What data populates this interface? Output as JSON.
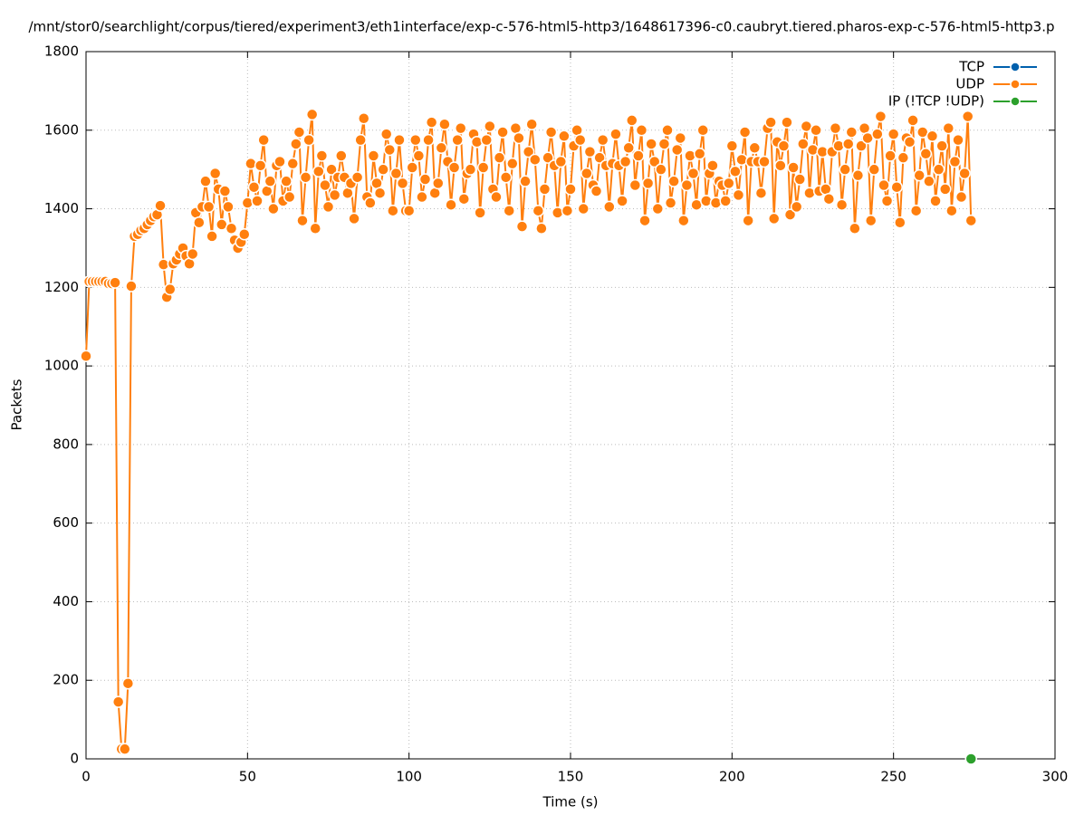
{
  "chart_data": {
    "type": "line",
    "title": "/mnt/stor0/searchlight/corpus/tiered/experiment3/eth1interface/exp-c-576-html5-http3/1648617396-c0.caubryt.tiered.pharos-exp-c-576-html5-http3.p",
    "x_label": "Time (s)",
    "y_label": "Packets",
    "xlim": [
      0,
      300
    ],
    "xticks": [
      0,
      50,
      100,
      150,
      200,
      250,
      300
    ],
    "ylim": [
      0,
      1800
    ],
    "yticks": [
      0,
      200,
      400,
      600,
      800,
      1000,
      1200,
      1400,
      1600,
      1800
    ],
    "grid": true,
    "legend": "top-right",
    "series": [
      {
        "name": "TCP",
        "color": "#0060ad",
        "x": [],
        "values": []
      },
      {
        "name": "UDP",
        "color": "#ff7f0e",
        "x": [
          0,
          1,
          2,
          3,
          4,
          5,
          6,
          7,
          8,
          9,
          10,
          11,
          12,
          13,
          14,
          15,
          16,
          17,
          18,
          19,
          20,
          21,
          22,
          23,
          24,
          25,
          26,
          27,
          28,
          29,
          30,
          31,
          32,
          33,
          34,
          35,
          36,
          37,
          38,
          39,
          40,
          41,
          42,
          43,
          44,
          45,
          46,
          47,
          48,
          49,
          50,
          51,
          52,
          53,
          54,
          55,
          56,
          57,
          58,
          59,
          60,
          61,
          62,
          63,
          64,
          65,
          66,
          67,
          68,
          69,
          70,
          71,
          72,
          73,
          74,
          75,
          76,
          77,
          78,
          79,
          80,
          81,
          82,
          83,
          84,
          85,
          86,
          87,
          88,
          89,
          90,
          91,
          92,
          93,
          94,
          95,
          96,
          97,
          98,
          99,
          100,
          101,
          102,
          103,
          104,
          105,
          106,
          107,
          108,
          109,
          110,
          111,
          112,
          113,
          114,
          115,
          116,
          117,
          118,
          119,
          120,
          121,
          122,
          123,
          124,
          125,
          126,
          127,
          128,
          129,
          130,
          131,
          132,
          133,
          134,
          135,
          136,
          137,
          138,
          139,
          140,
          141,
          142,
          143,
          144,
          145,
          146,
          147,
          148,
          149,
          150,
          151,
          152,
          153,
          154,
          155,
          156,
          157,
          158,
          159,
          160,
          161,
          162,
          163,
          164,
          165,
          166,
          167,
          168,
          169,
          170,
          171,
          172,
          173,
          174,
          175,
          176,
          177,
          178,
          179,
          180,
          181,
          182,
          183,
          184,
          185,
          186,
          187,
          188,
          189,
          190,
          191,
          192,
          193,
          194,
          195,
          196,
          197,
          198,
          199,
          200,
          201,
          202,
          203,
          204,
          205,
          206,
          207,
          208,
          209,
          210,
          211,
          212,
          213,
          214,
          215,
          216,
          217,
          218,
          219,
          220,
          221,
          222,
          223,
          224,
          225,
          226,
          227,
          228,
          229,
          230,
          231,
          232,
          233,
          234,
          235,
          236,
          237,
          238,
          239,
          240,
          241,
          242,
          243,
          244,
          245,
          246,
          247,
          248,
          249,
          250,
          251,
          252,
          253,
          254,
          255,
          256,
          257,
          258,
          259,
          260,
          261,
          262,
          263,
          264,
          265,
          266,
          267,
          268,
          269,
          270,
          271,
          272,
          273,
          274
        ],
        "values": [
          1025,
          1215,
          1215,
          1215,
          1215,
          1215,
          1215,
          1210,
          1210,
          1212,
          145,
          25,
          25,
          192,
          1203,
          1330,
          1335,
          1345,
          1350,
          1360,
          1370,
          1380,
          1385,
          1408,
          1258,
          1175,
          1195,
          1260,
          1270,
          1285,
          1300,
          1280,
          1260,
          1285,
          1390,
          1365,
          1405,
          1470,
          1405,
          1330,
          1490,
          1450,
          1360,
          1445,
          1405,
          1350,
          1320,
          1300,
          1315,
          1335,
          1415,
          1515,
          1455,
          1420,
          1510,
          1575,
          1445,
          1470,
          1400,
          1510,
          1520,
          1420,
          1470,
          1430,
          1515,
          1565,
          1595,
          1370,
          1480,
          1575,
          1640,
          1350,
          1495,
          1535,
          1460,
          1405,
          1500,
          1435,
          1480,
          1535,
          1480,
          1440,
          1465,
          1375,
          1480,
          1575,
          1630,
          1430,
          1415,
          1535,
          1465,
          1440,
          1500,
          1590,
          1550,
          1395,
          1490,
          1575,
          1465,
          1395,
          1395,
          1505,
          1575,
          1535,
          1430,
          1475,
          1575,
          1620,
          1440,
          1465,
          1555,
          1615,
          1520,
          1410,
          1505,
          1575,
          1605,
          1425,
          1490,
          1500,
          1590,
          1570,
          1390,
          1505,
          1575,
          1610,
          1450,
          1430,
          1530,
          1595,
          1480,
          1395,
          1515,
          1605,
          1580,
          1355,
          1470,
          1545,
          1615,
          1525,
          1395,
          1350,
          1450,
          1530,
          1595,
          1510,
          1390,
          1520,
          1585,
          1395,
          1450,
          1560,
          1600,
          1575,
          1400,
          1490,
          1545,
          1460,
          1445,
          1530,
          1575,
          1510,
          1405,
          1515,
          1590,
          1510,
          1420,
          1520,
          1555,
          1625,
          1460,
          1535,
          1600,
          1370,
          1465,
          1565,
          1520,
          1400,
          1500,
          1565,
          1600,
          1415,
          1470,
          1550,
          1580,
          1370,
          1460,
          1535,
          1490,
          1410,
          1540,
          1600,
          1420,
          1490,
          1510,
          1415,
          1470,
          1460,
          1420,
          1465,
          1560,
          1495,
          1435,
          1525,
          1595,
          1370,
          1520,
          1555,
          1520,
          1440,
          1520,
          1605,
          1620,
          1375,
          1570,
          1510,
          1560,
          1620,
          1385,
          1505,
          1405,
          1475,
          1565,
          1610,
          1440,
          1550,
          1600,
          1445,
          1545,
          1450,
          1425,
          1545,
          1605,
          1560,
          1410,
          1500,
          1565,
          1595,
          1350,
          1485,
          1560,
          1605,
          1580,
          1370,
          1500,
          1590,
          1635,
          1460,
          1420,
          1535,
          1590,
          1455,
          1365,
          1530,
          1580,
          1570,
          1625,
          1395,
          1485,
          1595,
          1540,
          1470,
          1585,
          1420,
          1500,
          1560,
          1450,
          1605,
          1395,
          1520,
          1575,
          1430,
          1490,
          1635,
          1370
        ]
      },
      {
        "name": "IP (!TCP  !UDP)",
        "color": "#2ca02c",
        "x": [
          274
        ],
        "values": [
          0
        ]
      }
    ]
  }
}
